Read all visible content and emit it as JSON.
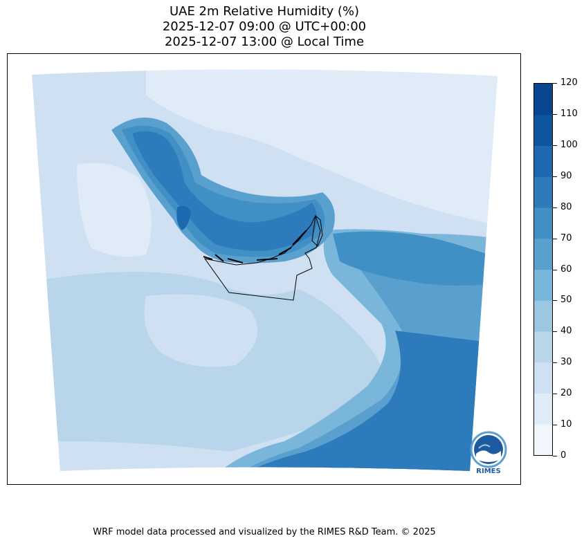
{
  "title": {
    "line1": "UAE 2m Relative Humidity (%)",
    "line2": "2025-12-07 09:00 @ UTC+00:00",
    "line3": "2025-12-07 13:00 @ Local Time"
  },
  "colorbar": {
    "levels": [
      0,
      10,
      20,
      30,
      40,
      50,
      60,
      70,
      80,
      90,
      100,
      110,
      120
    ],
    "tick_labels": [
      "0",
      "10",
      "20",
      "30",
      "40",
      "50",
      "60",
      "70",
      "80",
      "90",
      "100",
      "110",
      "120"
    ],
    "colors": [
      "#f0f6fc",
      "#dfebf7",
      "#cfe0f2",
      "#b8d5ea",
      "#9cc7e1",
      "#7ab5da",
      "#5aa0cf",
      "#4090c6",
      "#2e7bbb",
      "#1c69b0",
      "#0e559f",
      "#08478f",
      "#08306b"
    ]
  },
  "map": {
    "colors": {
      "ocean_dark": "#2e7bbb",
      "ocean_mid": "#4090c6",
      "gulf_light": "#5aa0cf",
      "land_light": "#cfe0f2",
      "land_lighter": "#dfebf7",
      "land_mid": "#b8d5ea",
      "boundary": "#000000"
    },
    "logo_text": "RIMES"
  },
  "footer": "WRF model data processed and visualized by the RIMES R&D Team. © 2025"
}
